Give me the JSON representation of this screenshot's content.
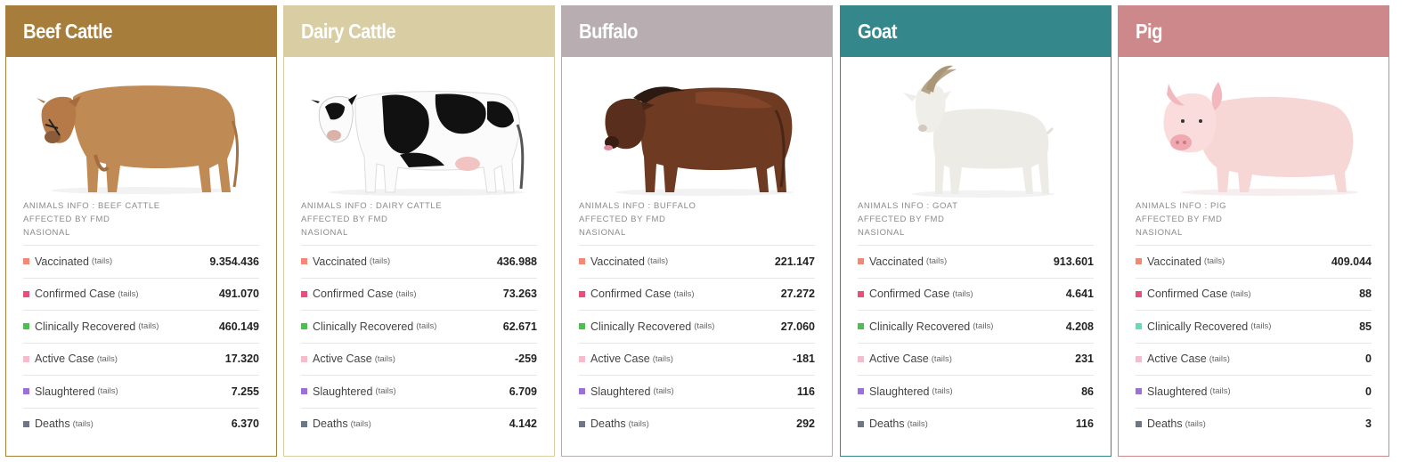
{
  "cards": [
    {
      "title": "Beef Cattle",
      "color": "#a67d3a",
      "image": "beef-cattle-image",
      "info": [
        "ANIMALS INFO : BEEF CATTLE",
        "AFFECTED BY FMD",
        "NASIONAL"
      ],
      "stats": [
        {
          "label": "Vaccinated",
          "unit": "(tails)",
          "value": "9.354.436",
          "color": "#f08a77"
        },
        {
          "label": "Confirmed Case",
          "unit": "(tails)",
          "value": "491.070",
          "color": "#e84f7a"
        },
        {
          "label": "Clinically Recovered",
          "unit": "(tails)",
          "value": "460.149",
          "color": "#4cc04c"
        },
        {
          "label": "Active Case",
          "unit": "(tails)",
          "value": "17.320",
          "color": "#f7bccc"
        },
        {
          "label": "Slaughtered",
          "unit": "(tails)",
          "value": "7.255",
          "color": "#9a72d6"
        },
        {
          "label": "Deaths",
          "unit": "(tails)",
          "value": "6.370",
          "color": "#6e7785"
        }
      ]
    },
    {
      "title": "Dairy Cattle",
      "color": "#d8cda3",
      "image": "dairy-cattle-image",
      "info": [
        "ANIMALS INFO : DAIRY CATTLE",
        "AFFECTED BY FMD",
        "NASIONAL"
      ],
      "stats": [
        {
          "label": "Vaccinated",
          "unit": "(tails)",
          "value": "436.988",
          "color": "#f08a77"
        },
        {
          "label": "Confirmed Case",
          "unit": "(tails)",
          "value": "73.263",
          "color": "#e84f7a"
        },
        {
          "label": "Clinically Recovered",
          "unit": "(tails)",
          "value": "62.671",
          "color": "#4cc04c"
        },
        {
          "label": "Active Case",
          "unit": "(tails)",
          "value": "-259",
          "color": "#f7bccc"
        },
        {
          "label": "Slaughtered",
          "unit": "(tails)",
          "value": "6.709",
          "color": "#9a72d6"
        },
        {
          "label": "Deaths",
          "unit": "(tails)",
          "value": "4.142",
          "color": "#6e7785"
        }
      ]
    },
    {
      "title": "Buffalo",
      "color": "#b8adb0",
      "image": "buffalo-image",
      "info": [
        "ANIMALS INFO : BUFFALO",
        "AFFECTED BY FMD",
        "NASIONAL"
      ],
      "stats": [
        {
          "label": "Vaccinated",
          "unit": "(tails)",
          "value": "221.147",
          "color": "#f08a77"
        },
        {
          "label": "Confirmed Case",
          "unit": "(tails)",
          "value": "27.272",
          "color": "#e84f7a"
        },
        {
          "label": "Clinically Recovered",
          "unit": "(tails)",
          "value": "27.060",
          "color": "#4cc04c"
        },
        {
          "label": "Active Case",
          "unit": "(tails)",
          "value": "-181",
          "color": "#f7bccc"
        },
        {
          "label": "Slaughtered",
          "unit": "(tails)",
          "value": "116",
          "color": "#9a72d6"
        },
        {
          "label": "Deaths",
          "unit": "(tails)",
          "value": "292",
          "color": "#6e7785"
        }
      ]
    },
    {
      "title": "Goat",
      "color": "#34878a",
      "image": "goat-image",
      "info": [
        "ANIMALS INFO : GOAT",
        "AFFECTED BY FMD",
        "NASIONAL"
      ],
      "stats": [
        {
          "label": "Vaccinated",
          "unit": "(tails)",
          "value": "913.601",
          "color": "#f08a77"
        },
        {
          "label": "Confirmed Case",
          "unit": "(tails)",
          "value": "4.641",
          "color": "#e84f7a"
        },
        {
          "label": "Clinically Recovered",
          "unit": "(tails)",
          "value": "4.208",
          "color": "#4cc04c"
        },
        {
          "label": "Active Case",
          "unit": "(tails)",
          "value": "231",
          "color": "#f7bccc"
        },
        {
          "label": "Slaughtered",
          "unit": "(tails)",
          "value": "86",
          "color": "#9a72d6"
        },
        {
          "label": "Deaths",
          "unit": "(tails)",
          "value": "116",
          "color": "#6e7785"
        }
      ]
    },
    {
      "title": "Pig",
      "color": "#cc888b",
      "image": "pig-image",
      "info": [
        "ANIMALS INFO : PIG",
        "AFFECTED BY FMD",
        "NASIONAL"
      ],
      "stats": [
        {
          "label": "Vaccinated",
          "unit": "(tails)",
          "value": "409.044",
          "color": "#f08a77"
        },
        {
          "label": "Confirmed Case",
          "unit": "(tails)",
          "value": "88",
          "color": "#e84f7a"
        },
        {
          "label": "Clinically Recovered",
          "unit": "(tails)",
          "value": "85",
          "color": "#5fe0b0"
        },
        {
          "label": "Active Case",
          "unit": "(tails)",
          "value": "0",
          "color": "#f7bccc"
        },
        {
          "label": "Slaughtered",
          "unit": "(tails)",
          "value": "0",
          "color": "#9a72d6"
        },
        {
          "label": "Deaths",
          "unit": "(tails)",
          "value": "3",
          "color": "#6e7785"
        }
      ]
    }
  ]
}
